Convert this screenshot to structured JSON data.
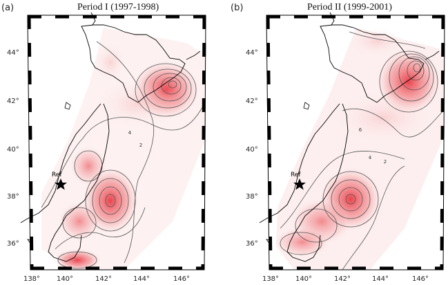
{
  "panels": [
    {
      "letter": "(a)",
      "title": "Period I (1997-1998)",
      "lat_labels": [
        "44°",
        "42°",
        "40°",
        "38°",
        "36°"
      ],
      "lon_labels": [
        "138°",
        "140°",
        "142°",
        "144°",
        "146°"
      ],
      "ref_label": "Ref",
      "contour_labels": [
        "4",
        "2"
      ]
    },
    {
      "letter": "(b)",
      "title": "Period II (1999-2001)",
      "lat_labels": [
        "44°",
        "42°",
        "40°",
        "38°",
        "36°"
      ],
      "lon_labels": [
        "138°",
        "140°",
        "142°",
        "144°",
        "146°"
      ],
      "ref_label": "Ref",
      "contour_labels": [
        "6",
        "4",
        "2"
      ]
    }
  ],
  "colors": {
    "frame": "#000000",
    "field": "#e8303a",
    "coast": "#000000",
    "contour": "#555555"
  }
}
